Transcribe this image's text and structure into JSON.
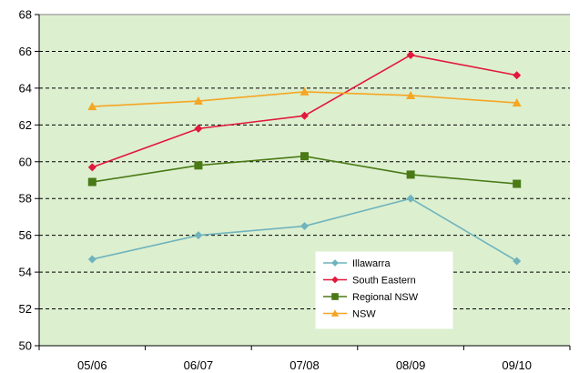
{
  "chart_data": {
    "type": "line",
    "categories": [
      "05/06",
      "06/07",
      "07/08",
      "08/09",
      "09/10"
    ],
    "ylim": [
      50,
      68
    ],
    "yticks": [
      50,
      52,
      54,
      56,
      58,
      60,
      62,
      64,
      66,
      68
    ],
    "grid": true,
    "grid_style": "dashed horizontal",
    "plot_background": "#dcefcf",
    "legend_position": "bottom-right inside plot",
    "series": [
      {
        "name": "Illawarra",
        "values": [
          54.7,
          56.0,
          56.5,
          58.0,
          54.6
        ],
        "color": "#6fb3bd",
        "marker": "diamond"
      },
      {
        "name": "South Eastern",
        "values": [
          59.7,
          61.8,
          62.5,
          65.8,
          64.7
        ],
        "color": "#e2183c",
        "marker": "diamond"
      },
      {
        "name": "Regional NSW",
        "values": [
          58.9,
          59.8,
          60.3,
          59.3,
          58.8
        ],
        "color": "#4a7a16",
        "marker": "square"
      },
      {
        "name": "NSW",
        "values": [
          63.0,
          63.3,
          63.8,
          63.6,
          63.2
        ],
        "color": "#f5a623",
        "marker": "triangle"
      }
    ]
  }
}
